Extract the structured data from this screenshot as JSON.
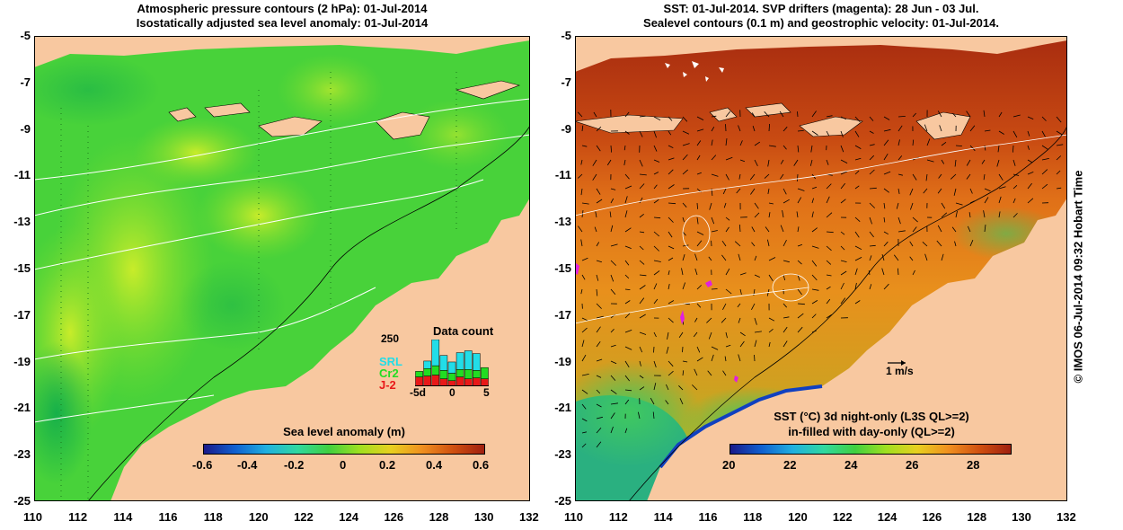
{
  "left_panel": {
    "title_line1": "Atmospheric pressure contours (2 hPa): 01-Jul-2014",
    "title_line2": "Isostatically adjusted sea level anomaly: 01-Jul-2014",
    "colorbar": {
      "label": "Sea level anomaly (m)",
      "ticks": [
        "-0.6",
        "-0.4",
        "-0.2",
        "0",
        "0.2",
        "0.4",
        "0.6"
      ]
    },
    "data_count": {
      "title": "Data count",
      "max_label": "250",
      "legend": [
        {
          "name": "SRL",
          "color": "#22dde8"
        },
        {
          "name": "Cr2",
          "color": "#22dd22"
        },
        {
          "name": "J-2",
          "color": "#e81818"
        }
      ],
      "x_ticks": [
        "-5d",
        "0",
        "5"
      ],
      "bars": [
        {
          "srl": 0,
          "cr2": 30,
          "j2": 50
        },
        {
          "srl": 40,
          "cr2": 40,
          "j2": 55
        },
        {
          "srl": 140,
          "cr2": 50,
          "j2": 60
        },
        {
          "srl": 80,
          "cr2": 45,
          "j2": 40
        },
        {
          "srl": 60,
          "cr2": 40,
          "j2": 30
        },
        {
          "srl": 90,
          "cr2": 40,
          "j2": 50
        },
        {
          "srl": 100,
          "cr2": 50,
          "j2": 40
        },
        {
          "srl": 90,
          "cr2": 40,
          "j2": 45
        },
        {
          "srl": 0,
          "cr2": 60,
          "j2": 40
        }
      ]
    }
  },
  "right_panel": {
    "title_line1": "SST: 01-Jul-2014. SVP drifters (magenta): 28 Jun - 03 Jul.",
    "title_line2": "Sealevel contours (0.1 m) and geostrophic velocity: 01-Jul-2014.",
    "velocity_scale": "1 m/s",
    "colorbar": {
      "label_line1": "SST (°C)  3d night-only (L3S QL>=2)",
      "label_line2": "in-filled with day-only (QL>=2)",
      "ticks": [
        "20",
        "22",
        "24",
        "26",
        "28"
      ]
    }
  },
  "axes": {
    "lat_labels": [
      "-5",
      "-7",
      "-9",
      "-11",
      "-13",
      "-15",
      "-17",
      "-19",
      "-21",
      "-23",
      "-25"
    ],
    "lon_labels": [
      "110",
      "112",
      "114",
      "116",
      "118",
      "120",
      "122",
      "124",
      "126",
      "128",
      "130",
      "132"
    ]
  },
  "credit": "© IMOS 06-Jul-2014 09:32 Hobart Time",
  "colors": {
    "land": "#f8c8a0",
    "ocean_green": "#3ad23a",
    "ocean_yellowgreen": "#a8e830",
    "sst_orange": "#e88a1a",
    "sst_darkred": "#b23410",
    "contour_white": "#ffffff"
  }
}
